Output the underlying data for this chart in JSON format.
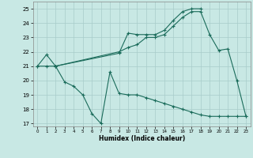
{
  "xlabel": "Humidex (Indice chaleur)",
  "xlim": [
    -0.5,
    23.5
  ],
  "ylim": [
    16.8,
    25.5
  ],
  "yticks": [
    17,
    18,
    19,
    20,
    21,
    22,
    23,
    24,
    25
  ],
  "xticks": [
    0,
    1,
    2,
    3,
    4,
    5,
    6,
    7,
    8,
    9,
    10,
    11,
    12,
    13,
    14,
    15,
    16,
    17,
    18,
    19,
    20,
    21,
    22,
    23
  ],
  "bg_color": "#c8e8e4",
  "line_color": "#1a6b5a",
  "grid_color": "#a8ccca",
  "line1_x": [
    0,
    1,
    2,
    9,
    10,
    11,
    12,
    13,
    14,
    15,
    16,
    17,
    18
  ],
  "line1_y": [
    21,
    21.8,
    21.0,
    21.9,
    23.3,
    23.2,
    23.2,
    23.2,
    23.5,
    24.2,
    24.8,
    25.0,
    25.0
  ],
  "line2_x": [
    0,
    1,
    2,
    9,
    10,
    11,
    12,
    13,
    14,
    15,
    16,
    17,
    18,
    19,
    20,
    21,
    22,
    23
  ],
  "line2_y": [
    21,
    21.0,
    21.0,
    22.0,
    22.3,
    22.5,
    23.0,
    23.0,
    23.2,
    23.8,
    24.4,
    24.8,
    24.8,
    23.2,
    22.1,
    22.2,
    20.0,
    17.5
  ],
  "line3_x": [
    2,
    3,
    4,
    5,
    6,
    7,
    8,
    9,
    10,
    11,
    12,
    13,
    14,
    15,
    16,
    17,
    18,
    19,
    20,
    21,
    22,
    23
  ],
  "line3_y": [
    21.0,
    19.9,
    19.6,
    19.0,
    17.7,
    17.0,
    20.6,
    19.1,
    19.0,
    19.0,
    18.8,
    18.6,
    18.4,
    18.2,
    18.0,
    17.8,
    17.6,
    17.5,
    17.5,
    17.5,
    17.5,
    17.5
  ]
}
